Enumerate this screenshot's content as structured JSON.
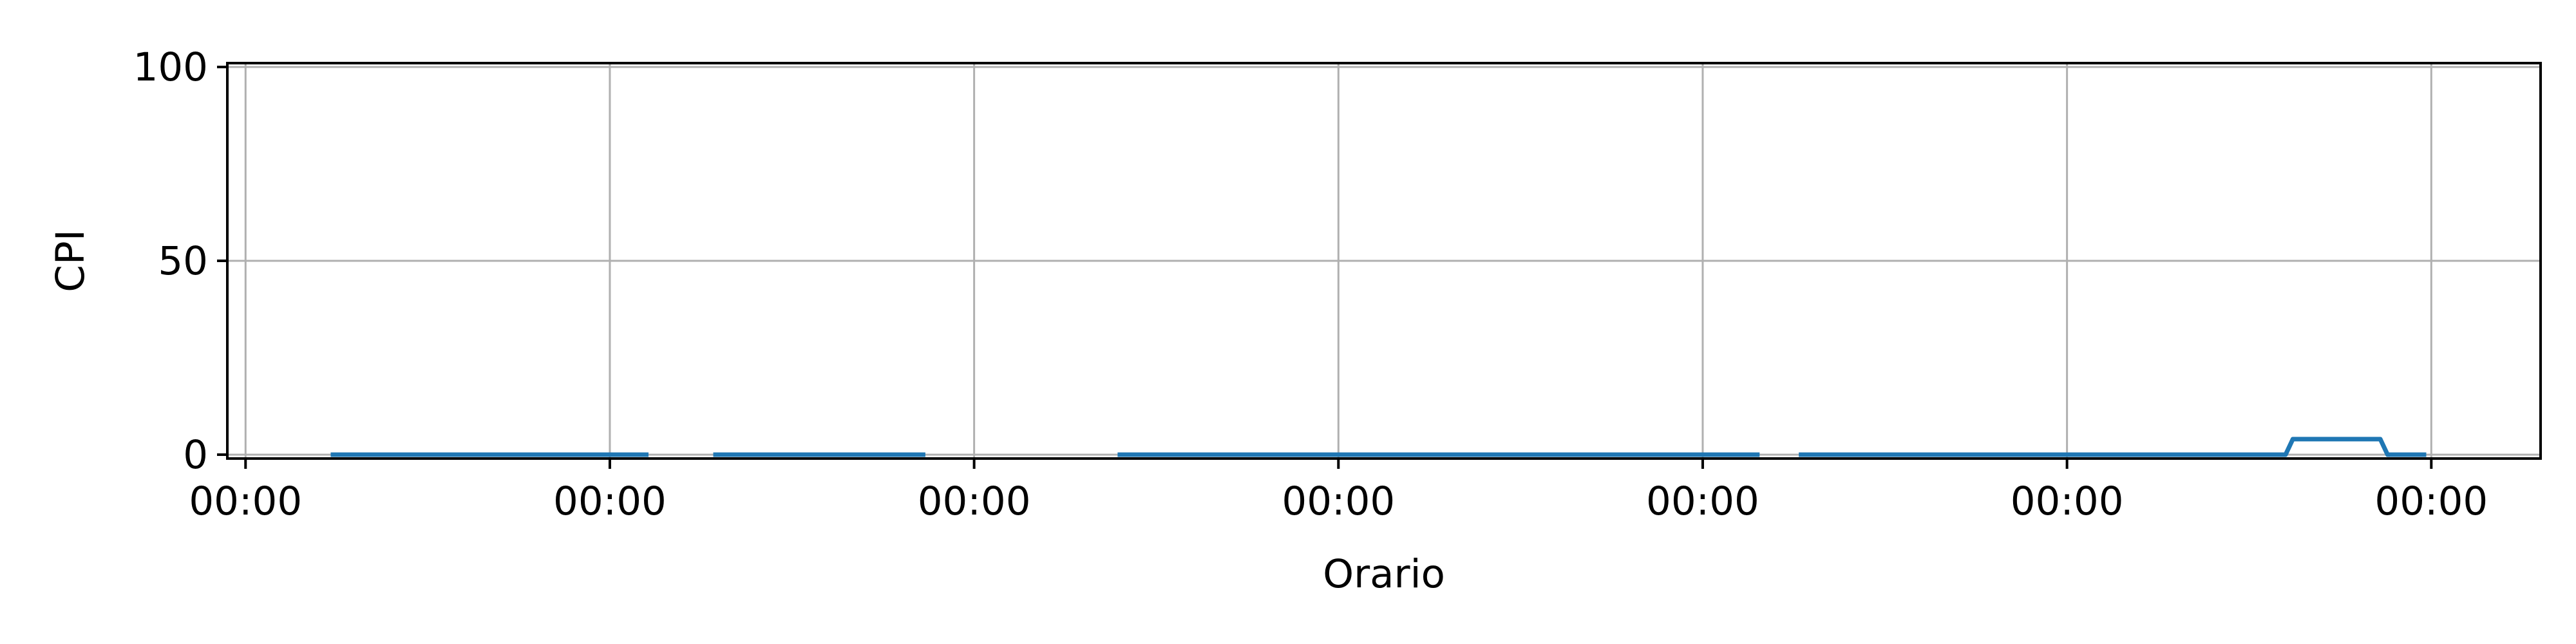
{
  "chart_data": {
    "type": "line",
    "xlabel": "Orario",
    "ylabel": "CPI",
    "x_tick_labels": [
      "00:00",
      "00:00",
      "00:00",
      "00:00",
      "00:00",
      "00:00",
      "00:00"
    ],
    "y_ticks": [
      0,
      50,
      100
    ],
    "xlim": [
      -0.05,
      6.3
    ],
    "ylim": [
      -1,
      101
    ],
    "grid": true,
    "colors": {
      "series": "#1f77b4",
      "grid": "#b0b0b0",
      "axes": "#000000"
    },
    "series": [
      {
        "points": [
          [
            0.24,
            0
          ],
          [
            1.1,
            0
          ],
          null,
          [
            1.29,
            0
          ],
          [
            1.86,
            0
          ],
          null,
          [
            2.4,
            0
          ],
          [
            4.15,
            0
          ],
          null,
          [
            4.27,
            0
          ],
          [
            5.6,
            0
          ],
          [
            5.62,
            4
          ],
          [
            5.86,
            4
          ],
          [
            5.88,
            0
          ],
          [
            5.98,
            0
          ]
        ]
      }
    ]
  }
}
